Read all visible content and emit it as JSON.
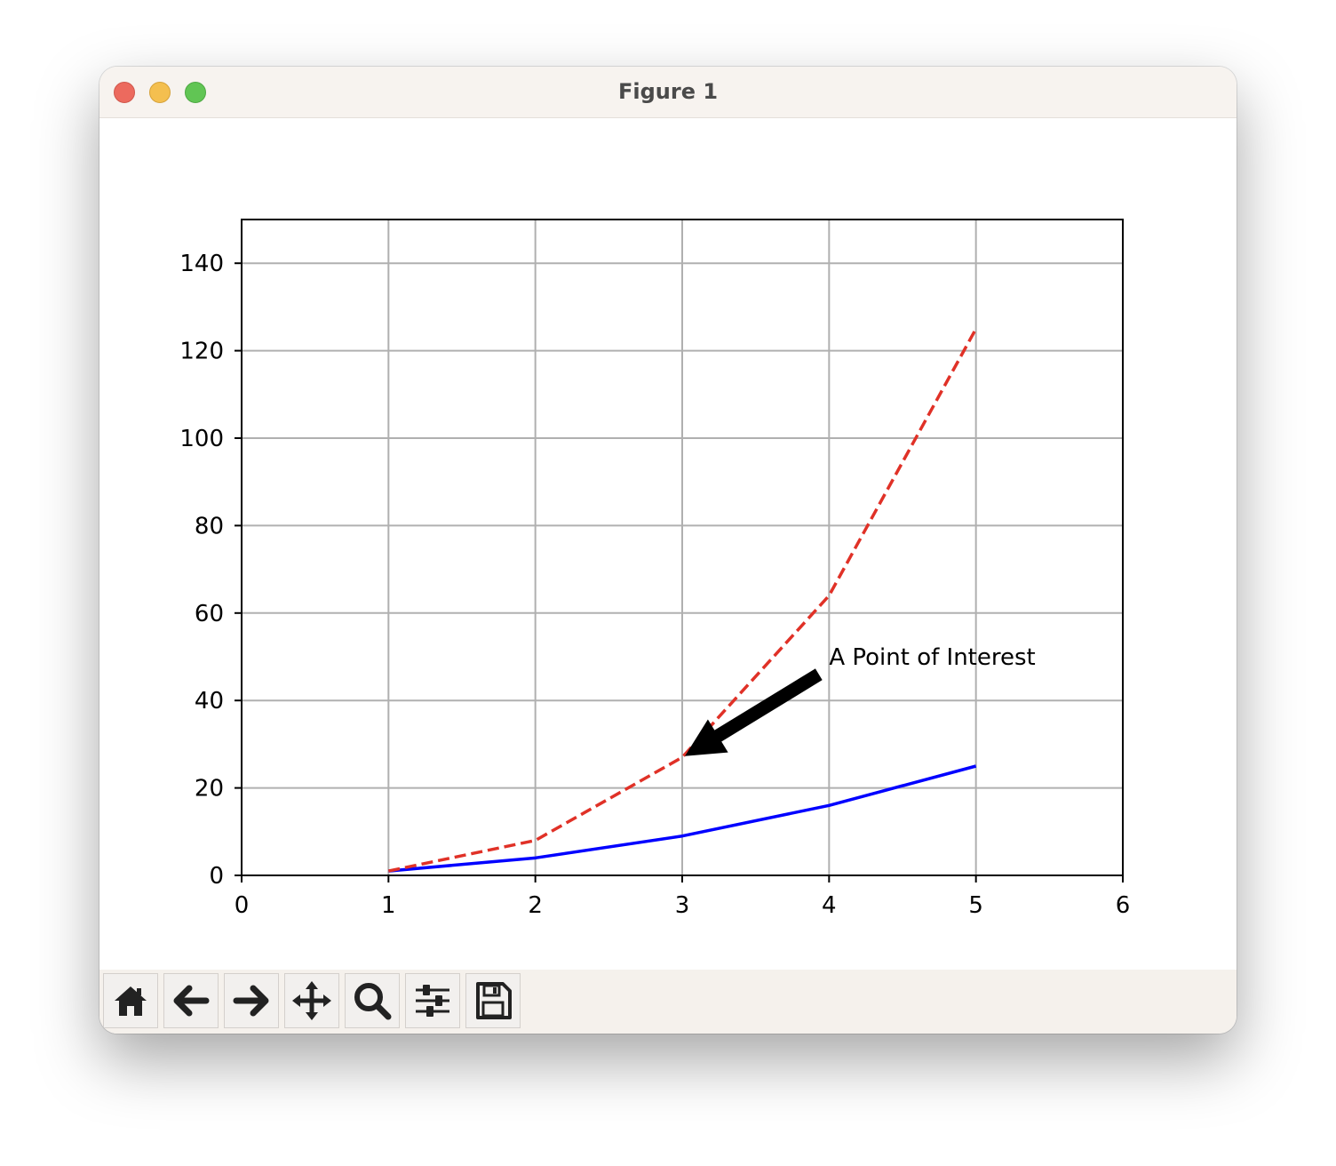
{
  "window": {
    "title": "Figure 1"
  },
  "toolbar": {
    "buttons": [
      {
        "name": "home-button",
        "icon": "home-icon"
      },
      {
        "name": "back-button",
        "icon": "arrow-left-icon"
      },
      {
        "name": "forward-button",
        "icon": "arrow-right-icon"
      },
      {
        "name": "pan-button",
        "icon": "move-icon"
      },
      {
        "name": "zoom-button",
        "icon": "magnifier-icon"
      },
      {
        "name": "configure-subplots-button",
        "icon": "sliders-icon"
      },
      {
        "name": "save-button",
        "icon": "floppy-disk-icon"
      }
    ]
  },
  "chart_data": {
    "type": "line",
    "title": "",
    "xlabel": "",
    "ylabel": "",
    "xlim": [
      0,
      6
    ],
    "ylim": [
      0,
      150
    ],
    "xticks": [
      "0",
      "1",
      "2",
      "3",
      "4",
      "5",
      "6"
    ],
    "yticks": [
      "0",
      "20",
      "40",
      "60",
      "80",
      "100",
      "120",
      "140"
    ],
    "grid": true,
    "legend": "none",
    "series": [
      {
        "x": [
          1,
          2,
          3,
          4,
          5
        ],
        "values": [
          1,
          4,
          9,
          16,
          25
        ],
        "color": "#0000ff",
        "style": "solid"
      },
      {
        "x": [
          1,
          2,
          3,
          4,
          5
        ],
        "values": [
          1,
          8,
          27,
          64,
          125
        ],
        "color": "#e03127",
        "style": "dashed"
      }
    ],
    "annotation": {
      "text": "A Point of Interest",
      "xy": [
        3,
        27
      ],
      "xytext": [
        4,
        50
      ]
    }
  }
}
